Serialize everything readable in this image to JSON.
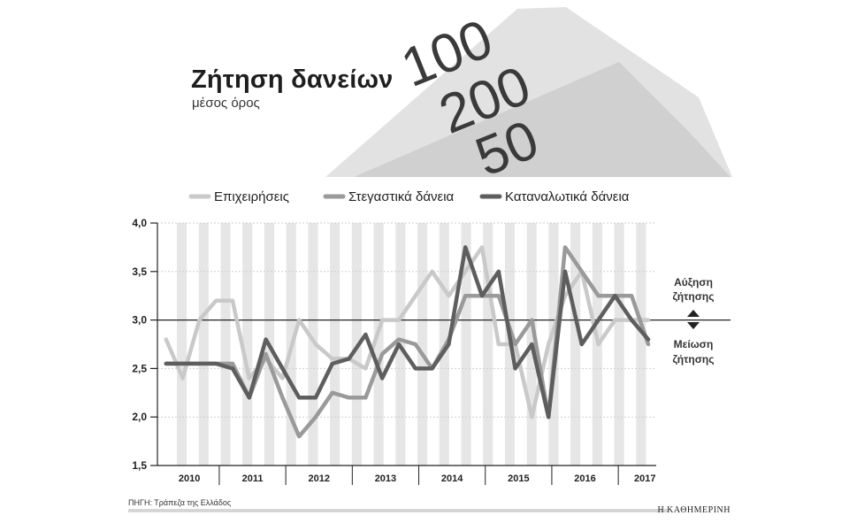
{
  "header": {
    "title": "Ζήτηση δανείων",
    "subtitle": "μέσος όρος"
  },
  "illustration": {
    "icon": "euro-banknotes-photo"
  },
  "chart_data": {
    "type": "line",
    "x": [
      2009.75,
      2010.0,
      2010.25,
      2010.5,
      2010.75,
      2011.0,
      2011.25,
      2011.5,
      2011.75,
      2012.0,
      2012.25,
      2012.5,
      2012.75,
      2013.0,
      2013.25,
      2013.5,
      2013.75,
      2014.0,
      2014.25,
      2014.5,
      2014.75,
      2015.0,
      2015.25,
      2015.5,
      2015.75,
      2016.0,
      2016.25,
      2016.5,
      2016.75,
      2017.0
    ],
    "series": [
      {
        "name": "Επιχειρήσεις",
        "color": "#c9c9c9",
        "values": [
          2.8,
          2.4,
          3.0,
          3.2,
          3.2,
          2.4,
          2.6,
          2.4,
          3.0,
          2.75,
          2.6,
          2.6,
          2.5,
          3.0,
          3.0,
          3.25,
          3.5,
          3.25,
          3.5,
          3.75,
          2.75,
          2.75,
          2.0,
          2.75,
          3.25,
          3.5,
          2.75,
          3.0,
          3.0,
          3.0
        ]
      },
      {
        "name": "Στεγαστικά δάνεια",
        "color": "#9a9a9a",
        "values": [
          2.55,
          2.55,
          2.55,
          2.55,
          2.55,
          2.2,
          2.65,
          2.2,
          1.8,
          2.0,
          2.25,
          2.2,
          2.2,
          2.65,
          2.8,
          2.75,
          2.5,
          2.8,
          3.25,
          3.25,
          3.25,
          2.75,
          3.0,
          2.0,
          3.75,
          3.5,
          3.25,
          3.25,
          3.25,
          2.75
        ]
      },
      {
        "name": "Καταναλωτικά δάνεια",
        "color": "#5e5e5e",
        "values": [
          2.55,
          2.55,
          2.55,
          2.55,
          2.5,
          2.2,
          2.8,
          2.5,
          2.2,
          2.2,
          2.55,
          2.6,
          2.85,
          2.4,
          2.75,
          2.5,
          2.5,
          2.75,
          3.75,
          3.25,
          3.5,
          2.5,
          2.75,
          2.0,
          3.5,
          2.75,
          3.0,
          3.25,
          3.0,
          2.8
        ]
      }
    ],
    "y_ticks": [
      "4,0",
      "3,5",
      "3,0",
      "2,5",
      "2,0",
      "1,5"
    ],
    "y_tick_values": [
      4.0,
      3.5,
      3.0,
      2.5,
      2.0,
      1.5
    ],
    "ylim": [
      1.5,
      4.0
    ],
    "year_labels": [
      "2010",
      "2011",
      "2012",
      "2013",
      "2014",
      "2015",
      "2016",
      "2017"
    ],
    "year_label_positions": [
      2010.1,
      2011.05,
      2012.05,
      2013.05,
      2014.05,
      2015.05,
      2016.05,
      2016.95
    ],
    "year_dividers": [
      2010.55,
      2011.55,
      2012.55,
      2013.55,
      2014.55,
      2015.55,
      2016.55
    ],
    "xlim": [
      2009.62,
      2017.12
    ],
    "reference_line": 3.0,
    "bars_count": 22,
    "grid": "vertical alternating bands",
    "legend_position": "top",
    "annotations": {
      "increase": [
        "Αύξηση",
        "ζήτησης"
      ],
      "decrease": [
        "Μείωση",
        "ζήτησης"
      ]
    }
  },
  "footer": {
    "source": "ΠΗΓΗ: Τράπεζα της Ελλάδος",
    "brand": "Η ΚΑΘΗΜΕΡΙΝΗ"
  }
}
